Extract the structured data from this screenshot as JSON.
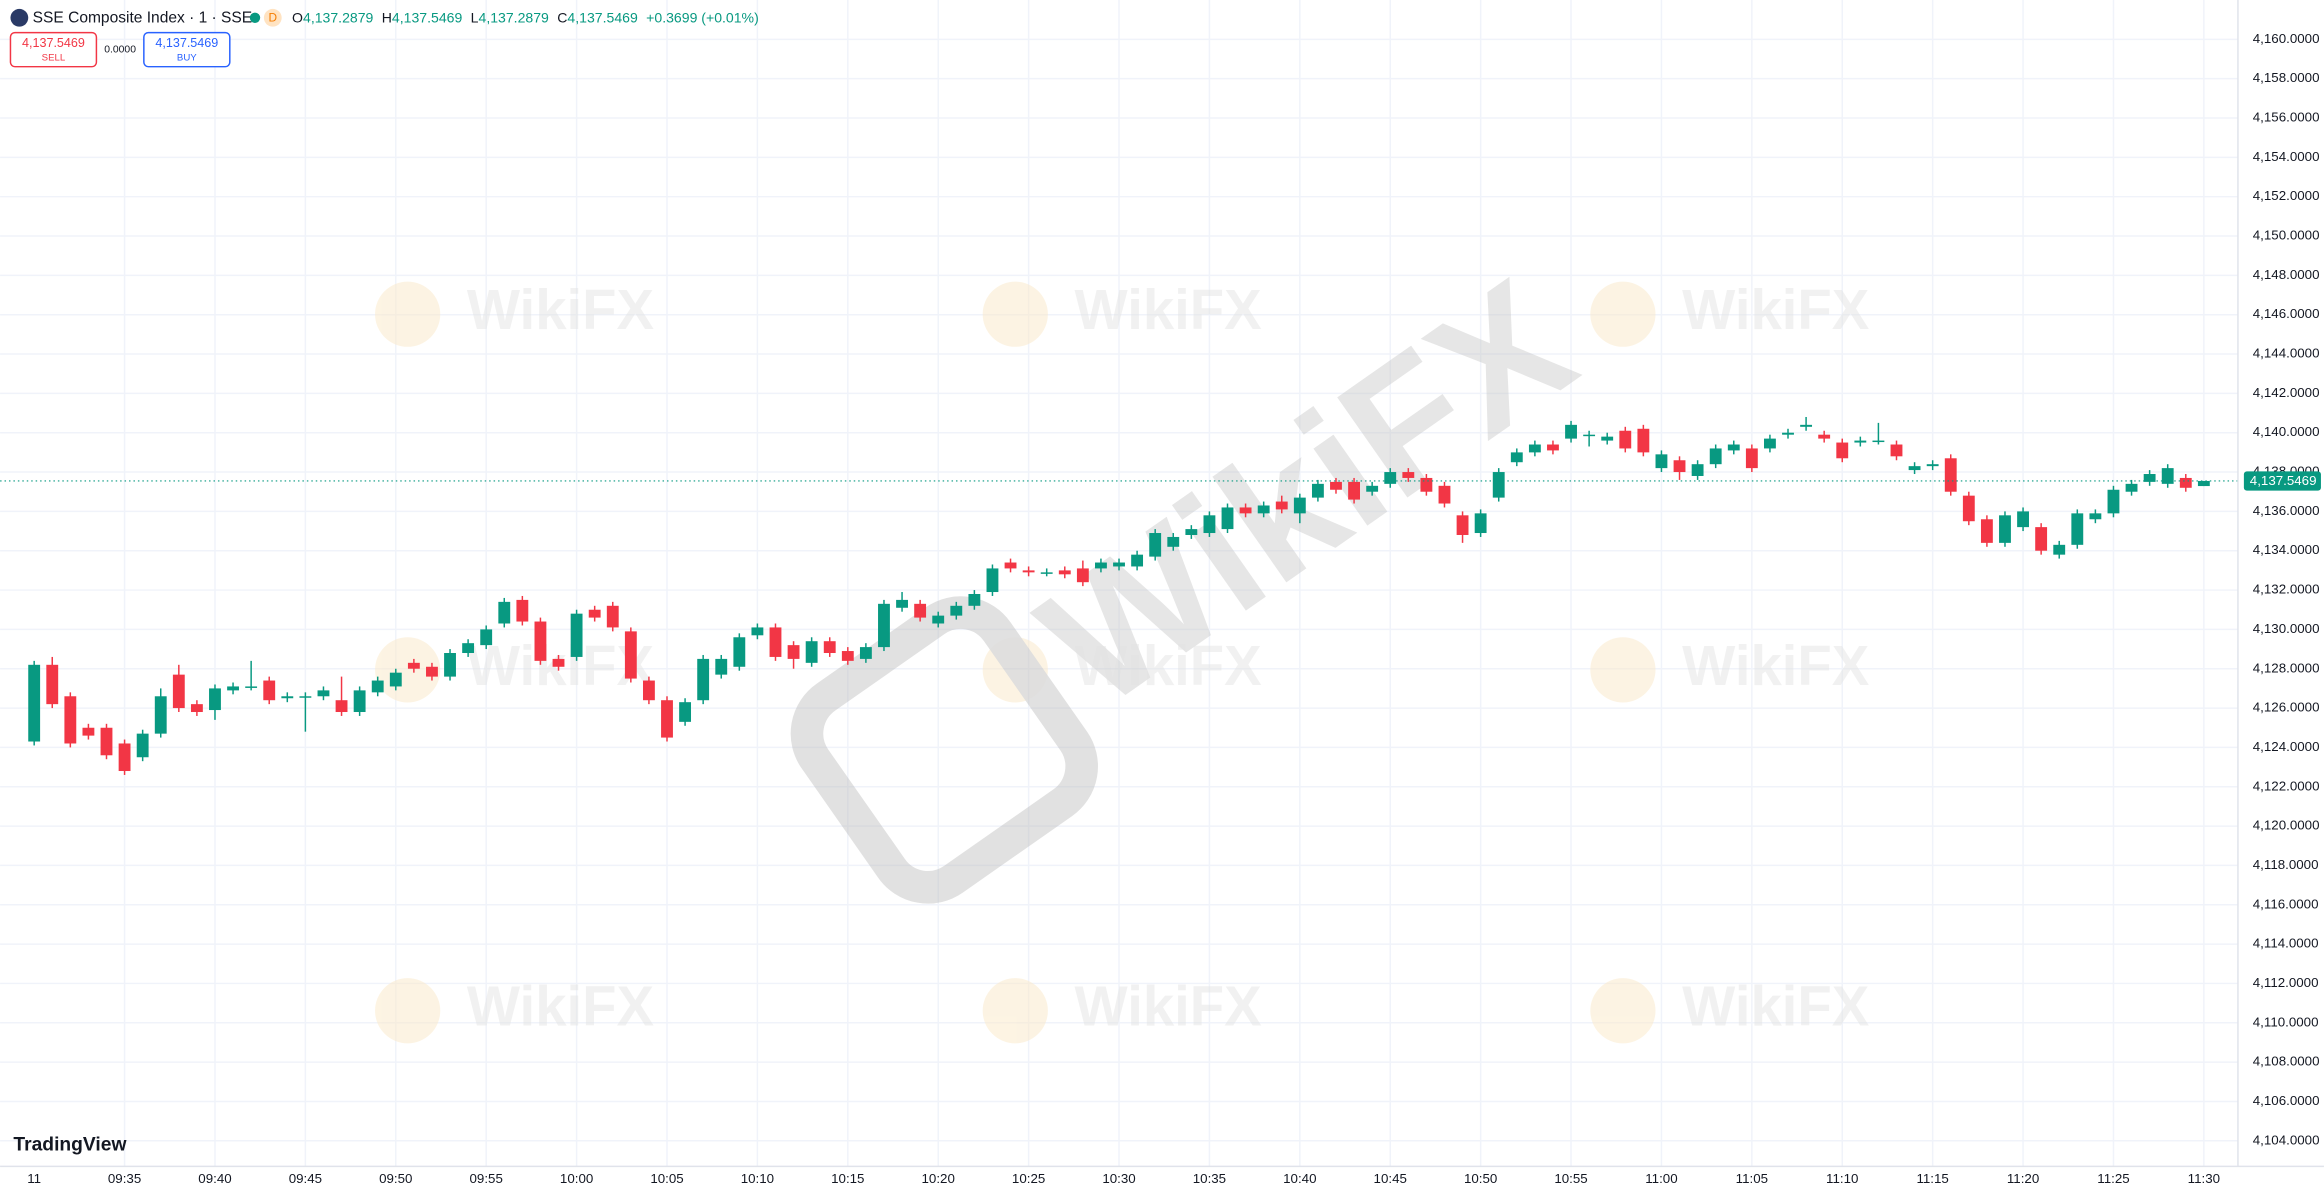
{
  "header": {
    "symbol": "SSE Composite Index · 1 · SSE",
    "badge": "D",
    "ohlc": [
      {
        "label": "O",
        "value": "4,137.2879"
      },
      {
        "label": "H",
        "value": "4,137.5469"
      },
      {
        "label": "L",
        "value": "4,137.2879"
      },
      {
        "label": "C",
        "value": "4,137.5469"
      }
    ],
    "change": "+0.3699 (+0.01%)"
  },
  "trade": {
    "sell_price": "4,137.5469",
    "sell": "SELL",
    "spread": "0.0000",
    "buy_price": "4,137.5469",
    "buy": "BUY"
  },
  "logo": "TradingView",
  "watermark": "WikiFX",
  "chart_data": {
    "type": "candlestick",
    "up_color": "#089981",
    "down_color": "#f23645",
    "grid": true,
    "categories": [
      "11",
      null,
      null,
      null,
      null,
      "09:35",
      null,
      null,
      null,
      null,
      "09:40",
      null,
      null,
      null,
      null,
      "09:45",
      null,
      null,
      null,
      null,
      "09:50",
      null,
      null,
      null,
      null,
      "09:55",
      null,
      null,
      null,
      null,
      "10:00",
      null,
      null,
      null,
      null,
      "10:05",
      null,
      null,
      null,
      null,
      "10:10",
      null,
      null,
      null,
      null,
      "10:15",
      null,
      null,
      null,
      null,
      "10:20",
      null,
      null,
      null,
      null,
      "10:25",
      null,
      null,
      null,
      null,
      "10:30",
      null,
      null,
      null,
      null,
      "10:35",
      null,
      null,
      null,
      null,
      "10:40",
      null,
      null,
      null,
      null,
      "10:45",
      null,
      null,
      null,
      null,
      "10:50",
      null,
      null,
      null,
      null,
      "10:55",
      null,
      null,
      null,
      null,
      "11:00",
      null,
      null,
      null,
      null,
      "11:05",
      null,
      null,
      null,
      null,
      "11:10",
      null,
      null,
      null,
      null,
      "11:15",
      null,
      null,
      null,
      null,
      "11:20",
      null,
      null,
      null,
      null,
      "11:25",
      null,
      null,
      null,
      null,
      "11:30"
    ],
    "open": [
      4124.3,
      4128.2,
      4126.6,
      4125.0,
      4125.0,
      4124.2,
      4123.5,
      4124.7,
      4127.7,
      4126.2,
      4125.9,
      4126.9,
      4127.1,
      4127.4,
      4126.5,
      4126.6,
      4126.6,
      4126.4,
      4125.8,
      4126.8,
      4127.1,
      4128.3,
      4128.1,
      4127.6,
      4128.8,
      4129.2,
      4130.3,
      4131.5,
      4130.4,
      4128.5,
      4128.6,
      4131.0,
      4131.2,
      4129.9,
      4127.4,
      4126.4,
      4125.3,
      4126.4,
      4127.7,
      4128.1,
      4129.7,
      4130.1,
      4129.2,
      4128.3,
      4129.4,
      4128.9,
      4128.5,
      4129.1,
      4131.1,
      4131.3,
      4130.3,
      4130.7,
      4131.2,
      4131.9,
      4133.4,
      4133.0,
      4132.9,
      4133.0,
      4133.1,
      4133.1,
      4133.2,
      4133.2,
      4133.7,
      4134.2,
      4134.8,
      4134.9,
      4135.1,
      4136.2,
      4135.9,
      4136.5,
      4135.9,
      4136.7,
      4137.5,
      4137.5,
      4137.0,
      4137.4,
      4138.0,
      4137.7,
      4137.3,
      4135.8,
      4134.9,
      4136.7,
      4138.5,
      4139.0,
      4139.4,
      4139.7,
      4139.9,
      4139.6,
      4140.1,
      4140.2,
      4138.2,
      4138.6,
      4137.8,
      4138.4,
      4139.1,
      4139.2,
      4139.2,
      4139.9,
      4140.3,
      4139.9,
      4139.5,
      4139.5,
      4139.6,
      4139.4,
      4138.1,
      4138.3,
      4138.7,
      4136.8,
      4135.6,
      4134.4,
      4135.2,
      4135.2,
      4133.8,
      4134.3,
      4135.6,
      4135.9,
      4137.0,
      4137.5,
      4137.4,
      4137.7,
      4137.2879
    ],
    "high": [
      4128.4,
      4128.6,
      4126.8,
      4125.2,
      4125.2,
      4124.4,
      4124.9,
      4127.0,
      4128.2,
      4126.4,
      4127.2,
      4127.3,
      4128.4,
      4127.6,
      4126.8,
      4126.8,
      4127.1,
      4127.6,
      4127.1,
      4127.6,
      4128.0,
      4128.5,
      4128.3,
      4129.0,
      4129.5,
      4130.2,
      4131.6,
      4131.7,
      4130.6,
      4128.7,
      4131.0,
      4131.2,
      4131.4,
      4130.1,
      4127.6,
      4126.6,
      4126.5,
      4128.7,
      4128.7,
      4129.8,
      4130.3,
      4130.3,
      4129.4,
      4129.6,
      4129.6,
      4129.1,
      4129.3,
      4131.5,
      4131.9,
      4131.5,
      4130.9,
      4131.4,
      4132.0,
      4133.3,
      4133.6,
      4133.2,
      4133.1,
      4133.2,
      4133.5,
      4133.6,
      4133.6,
      4134.0,
      4135.1,
      4134.9,
      4135.3,
      4136.0,
      4136.4,
      4136.4,
      4136.5,
      4136.8,
      4136.9,
      4137.6,
      4137.7,
      4137.7,
      4137.5,
      4138.2,
      4138.2,
      4137.9,
      4137.5,
      4136.0,
      4136.1,
      4138.2,
      4139.2,
      4139.6,
      4139.6,
      4140.6,
      4140.1,
      4140.0,
      4140.3,
      4140.4,
      4139.1,
      4138.8,
      4138.6,
      4139.4,
      4139.6,
      4139.4,
      4139.9,
      4140.2,
      4140.8,
      4140.1,
      4139.7,
      4139.8,
      4140.5,
      4139.6,
      4138.5,
      4138.6,
      4138.9,
      4137.0,
      4135.8,
      4136.0,
      4136.2,
      4135.4,
      4134.5,
      4136.1,
      4136.1,
      4137.3,
      4137.6,
      4138.1,
      4138.4,
      4137.9,
      4137.5469
    ],
    "low": [
      4124.1,
      4126.0,
      4124.0,
      4124.4,
      4123.4,
      4122.6,
      4123.3,
      4124.5,
      4125.8,
      4125.6,
      4125.4,
      4126.7,
      4126.9,
      4126.2,
      4126.3,
      4124.8,
      4126.4,
      4125.6,
      4125.6,
      4126.6,
      4126.9,
      4127.8,
      4127.4,
      4127.4,
      4128.6,
      4129.0,
      4130.1,
      4130.2,
      4128.2,
      4127.9,
      4128.4,
      4130.4,
      4129.9,
      4127.3,
      4126.2,
      4124.3,
      4125.1,
      4126.2,
      4127.5,
      4127.9,
      4129.5,
      4128.4,
      4128.0,
      4128.1,
      4128.6,
      4128.2,
      4128.3,
      4128.9,
      4130.9,
      4130.4,
      4130.1,
      4130.5,
      4131.0,
      4131.7,
      4132.9,
      4132.7,
      4132.7,
      4132.6,
      4132.2,
      4132.9,
      4133.0,
      4133.0,
      4133.5,
      4134.0,
      4134.6,
      4134.7,
      4134.9,
      4135.7,
      4135.7,
      4135.9,
      4135.4,
      4136.5,
      4136.9,
      4136.4,
      4136.8,
      4137.2,
      4137.5,
      4136.8,
      4136.2,
      4134.4,
      4134.7,
      4136.5,
      4138.3,
      4138.8,
      4138.9,
      4139.5,
      4139.3,
      4139.4,
      4139.0,
      4138.8,
      4138.0,
      4137.6,
      4137.6,
      4138.2,
      4138.9,
      4138.0,
      4139.0,
      4139.7,
      4140.1,
      4139.5,
      4138.5,
      4139.3,
      4139.4,
      4138.6,
      4137.9,
      4138.1,
      4136.8,
      4135.3,
      4134.2,
      4134.2,
      4135.0,
      4133.8,
      4133.6,
      4134.1,
      4135.4,
      4135.7,
      4136.8,
      4137.3,
      4137.2,
      4137.0,
      4137.2879
    ],
    "close": [
      4128.2,
      4126.2,
      4124.2,
      4124.6,
      4123.6,
      4122.8,
      4124.7,
      4126.6,
      4126.0,
      4125.8,
      4127.0,
      4127.1,
      4127.1,
      4126.4,
      4126.6,
      4126.6,
      4126.9,
      4125.8,
      4126.9,
      4127.4,
      4127.8,
      4128.0,
      4127.6,
      4128.8,
      4129.3,
      4130.0,
      4131.4,
      4130.4,
      4128.4,
      4128.1,
      4130.8,
      4130.6,
      4130.1,
      4127.5,
      4126.4,
      4124.5,
      4126.3,
      4128.5,
      4128.5,
      4129.6,
      4130.1,
      4128.6,
      4128.5,
      4129.4,
      4128.8,
      4128.4,
      4129.1,
      4131.3,
      4131.5,
      4130.6,
      4130.7,
      4131.2,
      4131.8,
      4133.1,
      4133.1,
      4132.9,
      4132.9,
      4132.8,
      4132.4,
      4133.4,
      4133.4,
      4133.8,
      4134.9,
      4134.7,
      4135.1,
      4135.8,
      4136.2,
      4135.9,
      4136.3,
      4136.1,
      4136.7,
      4137.4,
      4137.1,
      4136.6,
      4137.3,
      4138.0,
      4137.7,
      4137.0,
      4136.4,
      4134.8,
      4135.9,
      4138.0,
      4139.0,
      4139.4,
      4139.1,
      4140.4,
      4139.9,
      4139.8,
      4139.2,
      4139.0,
      4138.9,
      4138.0,
      4138.4,
      4139.2,
      4139.4,
      4138.2,
      4139.7,
      4140.0,
      4140.4,
      4139.7,
      4138.7,
      4139.6,
      4139.6,
      4138.8,
      4138.3,
      4138.4,
      4137.0,
      4135.5,
      4134.4,
      4135.8,
      4136.0,
      4134.0,
      4134.3,
      4135.9,
      4135.9,
      4137.1,
      4137.4,
      4137.9,
      4138.2,
      4137.2,
      4137.5469
    ],
    "last_price": {
      "value": 4137.5469,
      "label": "4,137.5469"
    },
    "ylim": [
      4102.7,
      4162
    ],
    "yticks": [
      {
        "value": 4104,
        "label": "4,104.0000"
      },
      {
        "value": 4106,
        "label": "4,106.0000"
      },
      {
        "value": 4108,
        "label": "4,108.0000"
      },
      {
        "value": 4110,
        "label": "4,110.0000"
      },
      {
        "value": 4112,
        "label": "4,112.0000"
      },
      {
        "value": 4114,
        "label": "4,114.0000"
      },
      {
        "value": 4116,
        "label": "4,116.0000"
      },
      {
        "value": 4118,
        "label": "4,118.0000"
      },
      {
        "value": 4120,
        "label": "4,120.0000"
      },
      {
        "value": 4122,
        "label": "4,122.0000"
      },
      {
        "value": 4124,
        "label": "4,124.0000"
      },
      {
        "value": 4126,
        "label": "4,126.0000"
      },
      {
        "value": 4128,
        "label": "4,128.0000"
      },
      {
        "value": 4130,
        "label": "4,130.0000"
      },
      {
        "value": 4132,
        "label": "4,132.0000"
      },
      {
        "value": 4134,
        "label": "4,134.0000"
      },
      {
        "value": 4136,
        "label": "4,136.0000"
      },
      {
        "value": 4138,
        "label": "4,138.0000"
      },
      {
        "value": 4140,
        "label": "4,140.0000"
      },
      {
        "value": 4142,
        "label": "4,142.0000"
      },
      {
        "value": 4144,
        "label": "4,144.0000"
      },
      {
        "value": 4146,
        "label": "4,146.0000"
      },
      {
        "value": 4148,
        "label": "4,148.0000"
      },
      {
        "value": 4150,
        "label": "4,150.0000"
      },
      {
        "value": 4152,
        "label": "4,152.0000"
      },
      {
        "value": 4154,
        "label": "4,154.0000"
      },
      {
        "value": 4156,
        "label": "4,156.0000"
      },
      {
        "value": 4158,
        "label": "4,158.0000"
      },
      {
        "value": 4160,
        "label": "4,160.0000"
      }
    ]
  }
}
